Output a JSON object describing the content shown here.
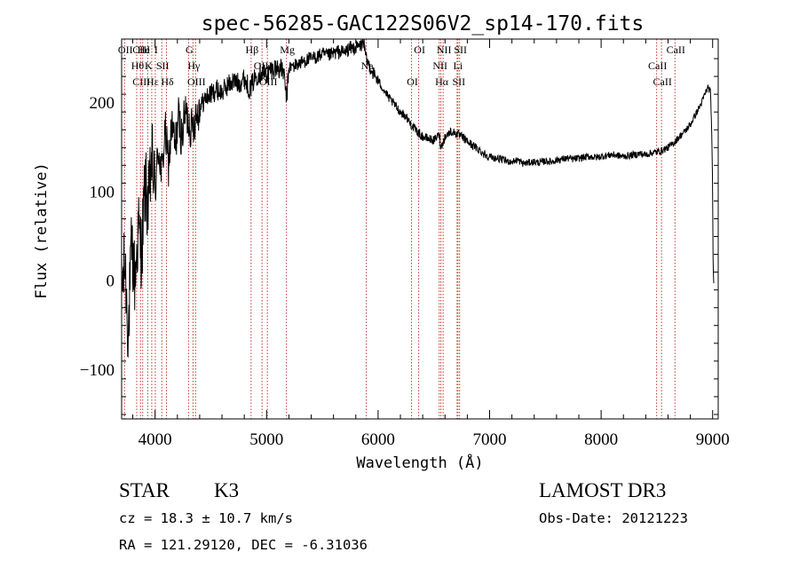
{
  "chart_data": {
    "type": "line",
    "title": "spec-56285-GAC122S06V2_sp14-170.fits",
    "xlabel": "Wavelength (Å)",
    "ylabel": "Flux (relative)",
    "xlim": [
      3700,
      9050
    ],
    "ylim": [
      -155,
      272
    ],
    "xticks": [
      4000,
      5000,
      6000,
      7000,
      8000,
      9000
    ],
    "xtick_labels": [
      "4000",
      "5000",
      "6000",
      "7000",
      "8000",
      "9000"
    ],
    "yticks": [
      -100,
      0,
      100,
      200
    ],
    "ytick_labels": [
      "−100",
      "0",
      "100",
      "200"
    ],
    "spectrum_x": [
      3700,
      3730,
      3760,
      3790,
      3820,
      3850,
      3880,
      3910,
      3940,
      3970,
      4000,
      4030,
      4060,
      4090,
      4120,
      4150,
      4180,
      4210,
      4240,
      4270,
      4300,
      4330,
      4360,
      4400,
      4450,
      4500,
      4550,
      4600,
      4650,
      4700,
      4750,
      4800,
      4850,
      4900,
      4950,
      5000,
      5050,
      5100,
      5150,
      5180,
      5200,
      5250,
      5300,
      5350,
      5400,
      5450,
      5500,
      5550,
      5600,
      5650,
      5700,
      5750,
      5800,
      5850,
      5870,
      5890,
      5910,
      5950,
      6000,
      6050,
      6100,
      6150,
      6200,
      6250,
      6300,
      6350,
      6400,
      6450,
      6500,
      6550,
      6563,
      6600,
      6650,
      6700,
      6750,
      6800,
      6850,
      6900,
      6950,
      7000,
      7050,
      7100,
      7150,
      7200,
      7250,
      7300,
      7350,
      7400,
      7450,
      7500,
      7550,
      7600,
      7650,
      7700,
      7750,
      7800,
      7850,
      7900,
      7950,
      8000,
      8050,
      8100,
      8150,
      8200,
      8250,
      8300,
      8350,
      8400,
      8450,
      8500,
      8550,
      8600,
      8650,
      8700,
      8750,
      8800,
      8850,
      8900,
      8930,
      8960,
      8980,
      8990,
      9000,
      9005,
      9010
    ],
    "spectrum_y": [
      -10,
      20,
      -60,
      40,
      0,
      60,
      30,
      110,
      80,
      140,
      100,
      150,
      120,
      170,
      130,
      175,
      150,
      185,
      160,
      190,
      180,
      170,
      185,
      195,
      205,
      210,
      215,
      212,
      220,
      225,
      222,
      228,
      215,
      230,
      235,
      232,
      238,
      240,
      236,
      205,
      240,
      242,
      245,
      248,
      250,
      252,
      255,
      253,
      256,
      258,
      257,
      262,
      262,
      265,
      270,
      250,
      245,
      235,
      225,
      215,
      205,
      198,
      190,
      185,
      175,
      168,
      162,
      160,
      158,
      165,
      150,
      162,
      168,
      166,
      162,
      157,
      152,
      148,
      143,
      140,
      138,
      137,
      135,
      134,
      136,
      132,
      133,
      134,
      133,
      135,
      134,
      136,
      137,
      138,
      137,
      138,
      139,
      140,
      139,
      140,
      141,
      142,
      141,
      140,
      141,
      142,
      143,
      142,
      144,
      145,
      147,
      150,
      155,
      162,
      168,
      176,
      188,
      200,
      210,
      218,
      212,
      180,
      100,
      10,
      0
    ],
    "lines": [
      {
        "wl": 3726,
        "labels": [
          "OII"
        ]
      },
      {
        "wl": 3835,
        "labels": [
          "Hθ"
        ]
      },
      {
        "wl": 3869,
        "labels": [
          "CIII",
          "CIII"
        ]
      },
      {
        "wl": 3889,
        "labels": [
          "He"
        ]
      },
      {
        "wl": 3934,
        "labels": [
          "K"
        ]
      },
      {
        "wl": 3970,
        "labels": [
          "Hε"
        ]
      },
      {
        "wl": 4002,
        "labels": [
          "I"
        ]
      },
      {
        "wl": 4060,
        "labels": [
          "SII"
        ]
      },
      {
        "wl": 4102,
        "labels": [
          "Hδ"
        ]
      },
      {
        "wl": 4300,
        "labels": [
          "G"
        ]
      },
      {
        "wl": 4340,
        "labels": [
          "Hγ"
        ]
      },
      {
        "wl": 4363,
        "labels": [
          "OIII"
        ]
      },
      {
        "wl": 4861,
        "labels": [
          "Hβ"
        ]
      },
      {
        "wl": 4959,
        "labels": [
          "OIII"
        ]
      },
      {
        "wl": 5007,
        "labels": [
          "OIII"
        ]
      },
      {
        "wl": 5178,
        "labels": [
          "Mg"
        ]
      },
      {
        "wl": 5894,
        "labels": [
          "Na"
        ]
      },
      {
        "wl": 6300,
        "labels": [
          "OI"
        ]
      },
      {
        "wl": 6364,
        "labels": [
          "OI"
        ]
      },
      {
        "wl": 6548,
        "labels": [
          "NII"
        ]
      },
      {
        "wl": 6563,
        "labels": [
          "Hα"
        ]
      },
      {
        "wl": 6583,
        "labels": [
          "NII"
        ]
      },
      {
        "wl": 6708,
        "labels": [
          "Li"
        ]
      },
      {
        "wl": 6716,
        "labels": [
          "SII"
        ]
      },
      {
        "wl": 6731,
        "labels": [
          "SII"
        ]
      },
      {
        "wl": 8498,
        "labels": [
          "CaII"
        ]
      },
      {
        "wl": 8542,
        "labels": [
          "CaII"
        ]
      },
      {
        "wl": 8662,
        "labels": [
          "CaII"
        ]
      }
    ]
  },
  "info": {
    "class": "STAR",
    "subclass": "K3",
    "survey": "LAMOST DR3",
    "cz": "cz = 18.3 ± 10.7 km/s",
    "obs_date": "Obs-Date: 20121223",
    "radec": "RA = 121.29120, DEC =  -6.31036"
  },
  "colors": {
    "spectrum": "#000000",
    "line_markers": "#c0392b",
    "axes": "#000000"
  }
}
